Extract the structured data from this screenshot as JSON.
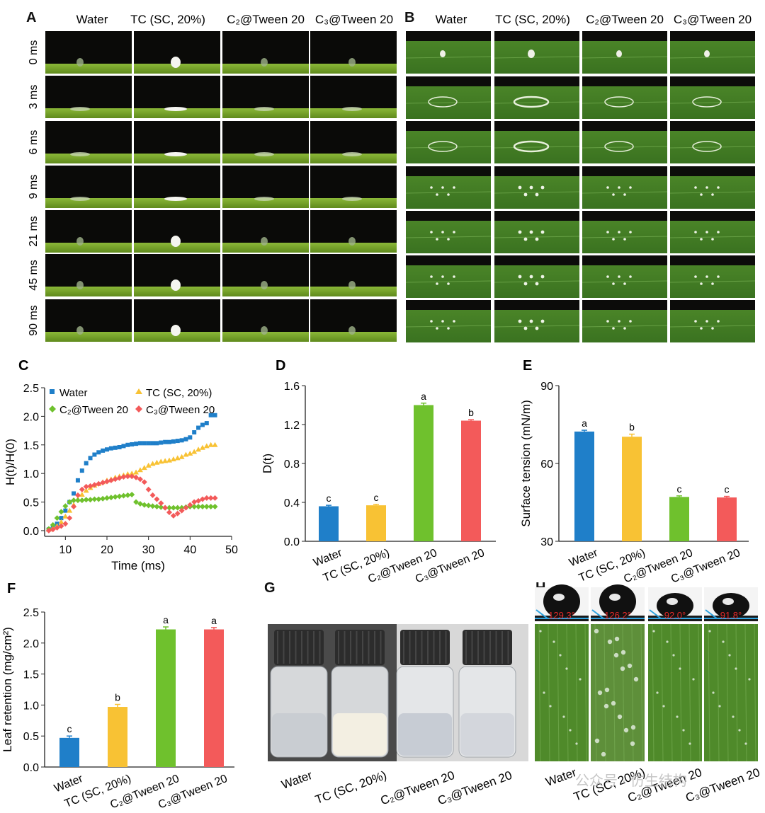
{
  "panels": {
    "A": {
      "letter": "A",
      "columns": [
        "Water",
        "TC (SC, 20%)",
        "C₂@Tween 20",
        "C₃@Tween 20"
      ],
      "rows": [
        "0 ms",
        "3 ms",
        "6 ms",
        "9 ms",
        "21 ms",
        "45 ms",
        "90 ms"
      ]
    },
    "B": {
      "letter": "B",
      "columns": [
        "Water",
        "TC (SC, 20%)",
        "C₂@Tween 20",
        "C₃@Tween 20"
      ]
    },
    "G": {
      "letter": "G",
      "labels": [
        "Water",
        "TC (SC, 20%)",
        "C₂@Tween 20",
        "C₃@Tween 20"
      ]
    },
    "H": {
      "letter": "H",
      "angles": [
        "129.3°",
        "126.2°",
        "92.0°",
        "91.8°"
      ],
      "labels": [
        "Water",
        "TC (SC, 20%)",
        "C₂@Tween 20",
        "C₃@Tween 20"
      ],
      "watermark": "公众号 · 仿生结构"
    }
  },
  "colors": {
    "water": "#1f7fc9",
    "tc": "#f8c234",
    "c2": "#6fc12d",
    "c3": "#f35a5a"
  },
  "chart_data": [
    {
      "id": "C",
      "letter": "C",
      "type": "scatter",
      "xlabel": "Time (ms)",
      "ylabel": "H(t)/H(0)",
      "xlim": [
        5,
        50
      ],
      "ylim": [
        -0.1,
        2.5
      ],
      "xticks": [
        10,
        20,
        30,
        40,
        50
      ],
      "yticks": [
        0.0,
        0.5,
        1.0,
        1.5,
        2.0,
        2.5
      ],
      "series": [
        {
          "name": "Water",
          "color": "#1f7fc9",
          "x": [
            6,
            7,
            8,
            9,
            10,
            11,
            12,
            13,
            14,
            15,
            16,
            17,
            18,
            19,
            20,
            21,
            22,
            23,
            24,
            25,
            26,
            27,
            28,
            29,
            30,
            31,
            32,
            33,
            34,
            35,
            36,
            37,
            38,
            39,
            40,
            41,
            42,
            43,
            44,
            45,
            46
          ],
          "y": [
            0.02,
            0.05,
            0.12,
            0.22,
            0.35,
            0.5,
            0.65,
            0.88,
            1.05,
            1.18,
            1.27,
            1.33,
            1.37,
            1.4,
            1.42,
            1.44,
            1.45,
            1.46,
            1.48,
            1.5,
            1.51,
            1.52,
            1.53,
            1.53,
            1.53,
            1.53,
            1.53,
            1.54,
            1.55,
            1.55,
            1.56,
            1.57,
            1.58,
            1.6,
            1.63,
            1.72,
            1.8,
            1.85,
            1.88,
            2.02,
            2.02
          ]
        },
        {
          "name": "TC (SC, 20%)",
          "color": "#f8c234",
          "x": [
            6,
            7,
            8,
            9,
            10,
            11,
            12,
            13,
            14,
            15,
            16,
            17,
            18,
            19,
            20,
            21,
            22,
            23,
            24,
            25,
            26,
            27,
            28,
            29,
            30,
            31,
            32,
            33,
            34,
            35,
            36,
            37,
            38,
            39,
            40,
            41,
            42,
            43,
            44,
            45,
            46
          ],
          "y": [
            0.02,
            0.05,
            0.08,
            0.15,
            0.25,
            0.35,
            0.45,
            0.55,
            0.63,
            0.7,
            0.75,
            0.79,
            0.82,
            0.85,
            0.88,
            0.9,
            0.93,
            0.95,
            0.97,
            0.99,
            1.0,
            1.02,
            1.06,
            1.1,
            1.14,
            1.17,
            1.19,
            1.21,
            1.22,
            1.23,
            1.25,
            1.27,
            1.29,
            1.33,
            1.35,
            1.38,
            1.42,
            1.45,
            1.48,
            1.5,
            1.5
          ]
        },
        {
          "name": "C₂@Tween 20",
          "color": "#6fc12d",
          "x": [
            6,
            7,
            8,
            9,
            10,
            11,
            12,
            13,
            14,
            15,
            16,
            17,
            18,
            19,
            20,
            21,
            22,
            23,
            24,
            25,
            26,
            27,
            28,
            29,
            30,
            31,
            32,
            33,
            34,
            35,
            36,
            37,
            38,
            39,
            40,
            41,
            42,
            43,
            44,
            45,
            46
          ],
          "y": [
            0.03,
            0.1,
            0.22,
            0.33,
            0.43,
            0.5,
            0.53,
            0.53,
            0.53,
            0.54,
            0.54,
            0.55,
            0.55,
            0.56,
            0.57,
            0.58,
            0.59,
            0.6,
            0.61,
            0.62,
            0.63,
            0.5,
            0.47,
            0.45,
            0.44,
            0.43,
            0.42,
            0.41,
            0.4,
            0.4,
            0.4,
            0.4,
            0.4,
            0.41,
            0.42,
            0.42,
            0.42,
            0.42,
            0.42,
            0.42,
            0.42
          ]
        },
        {
          "name": "C₃@Tween 20",
          "color": "#f35a5a",
          "x": [
            6,
            7,
            8,
            9,
            10,
            11,
            12,
            13,
            14,
            15,
            16,
            17,
            18,
            19,
            20,
            21,
            22,
            23,
            24,
            25,
            26,
            27,
            28,
            29,
            30,
            31,
            32,
            33,
            34,
            35,
            36,
            37,
            38,
            39,
            40,
            41,
            42,
            43,
            44,
            45,
            46
          ],
          "y": [
            0.0,
            0.02,
            0.05,
            0.08,
            0.12,
            0.22,
            0.42,
            0.62,
            0.72,
            0.77,
            0.78,
            0.8,
            0.82,
            0.84,
            0.86,
            0.88,
            0.9,
            0.92,
            0.94,
            0.95,
            0.95,
            0.93,
            0.9,
            0.85,
            0.72,
            0.62,
            0.55,
            0.48,
            0.4,
            0.32,
            0.26,
            0.3,
            0.35,
            0.4,
            0.45,
            0.5,
            0.52,
            0.55,
            0.57,
            0.57,
            0.57
          ]
        }
      ]
    },
    {
      "id": "D",
      "letter": "D",
      "type": "bar",
      "ylabel": "D(t)",
      "categories": [
        "Water",
        "TC (SC, 20%)",
        "C₂@Tween 20",
        "C₃@Tween 20"
      ],
      "values": [
        0.36,
        0.37,
        1.4,
        1.24
      ],
      "errors": [
        0.01,
        0.01,
        0.02,
        0.01
      ],
      "letters": [
        "c",
        "c",
        "a",
        "b"
      ],
      "colors": [
        "#1f7fc9",
        "#f8c234",
        "#6fc12d",
        "#f35a5a"
      ],
      "ylim": [
        0.0,
        1.6
      ],
      "yticks": [
        0.0,
        0.4,
        0.8,
        1.2,
        1.6
      ]
    },
    {
      "id": "E",
      "letter": "E",
      "type": "bar",
      "ylabel": "Surface tension (mN/m)",
      "categories": [
        "Water",
        "TC (SC, 20%)",
        "C₂@Tween 20",
        "C₃@Tween 20"
      ],
      "values": [
        72.3,
        70.3,
        47.1,
        46.9
      ],
      "errors": [
        0.5,
        1.0,
        0.4,
        0.4
      ],
      "letters": [
        "a",
        "b",
        "c",
        "c"
      ],
      "colors": [
        "#1f7fc9",
        "#f8c234",
        "#6fc12d",
        "#f35a5a"
      ],
      "ylim": [
        30,
        90
      ],
      "yticks": [
        30,
        60,
        90
      ]
    },
    {
      "id": "F",
      "letter": "F",
      "type": "bar",
      "ylabel": "Leaf retention (mg/cm²)",
      "categories": [
        "Water",
        "TC (SC, 20%)",
        "C₂@Tween 20",
        "C₃@Tween 20"
      ],
      "values": [
        0.47,
        0.97,
        2.22,
        2.22
      ],
      "errors": [
        0.03,
        0.04,
        0.04,
        0.03
      ],
      "letters": [
        "c",
        "b",
        "a",
        "a"
      ],
      "colors": [
        "#1f7fc9",
        "#f8c234",
        "#6fc12d",
        "#f35a5a"
      ],
      "ylim": [
        0.0,
        2.5
      ],
      "yticks": [
        0.0,
        0.5,
        1.0,
        1.5,
        2.0,
        2.5
      ]
    }
  ]
}
